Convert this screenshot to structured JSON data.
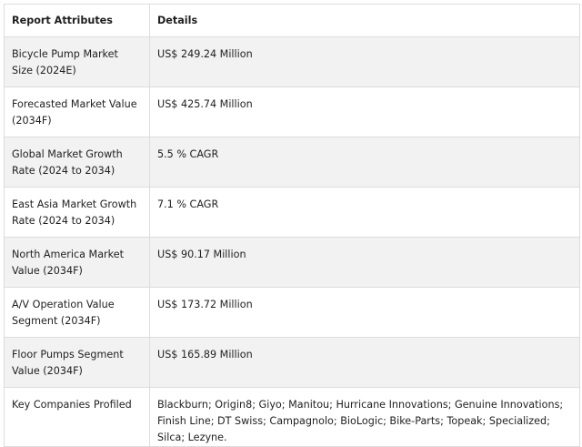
{
  "table": {
    "headers": [
      "Report Attributes",
      "Details"
    ],
    "rows": [
      [
        "Bicycle Pump Market Size (2024E)",
        "US$ 249.24 Million"
      ],
      [
        "Forecasted Market Value (2034F)",
        "US$ 425.74 Million"
      ],
      [
        "Global Market Growth Rate (2024 to 2034)",
        "5.5 % CAGR"
      ],
      [
        "East Asia Market Growth Rate (2024 to 2034)",
        "7.1 % CAGR"
      ],
      [
        "North America Market Value (2034F)",
        "US$ 90.17 Million"
      ],
      [
        "A/V Operation Value Segment (2034F)",
        "US$ 173.72 Million"
      ],
      [
        "Floor Pumps Segment Value (2034F)",
        "US$ 165.89 Million"
      ],
      [
        "Key Companies Profiled",
        "Blackburn; Origin8; Giyo; Manitou; Hurricane Innovations; Genuine Innovations; Finish Line; DT Swiss; Campagnolo; BioLogic; Bike-Parts; Topeak; Specialized; Silca; Lezyne."
      ]
    ]
  }
}
